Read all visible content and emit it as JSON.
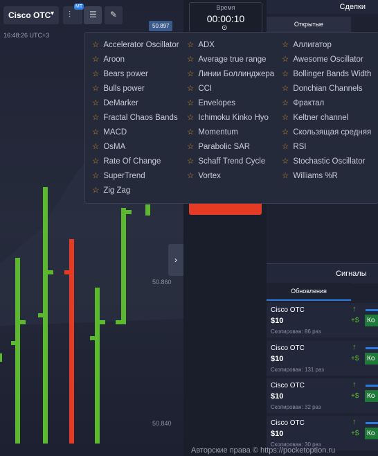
{
  "toolbar": {
    "asset": "Cisco OTC",
    "badge": "MT",
    "time": "16:48:26 UTC+3",
    "price": "50.897"
  },
  "timer": {
    "label": "Время",
    "value": "00:00:10"
  },
  "trades": {
    "title": "Сделки",
    "tab": "Открытые"
  },
  "indicators": {
    "columns": [
      [
        "Accelerator Oscillator",
        "Aroon",
        "Bears power",
        "Bulls power",
        "DeMarker",
        "Fractal Chaos Bands",
        "MACD",
        "OsMA",
        "Rate Of Change",
        "SuperTrend",
        "Zig Zag"
      ],
      [
        "ADX",
        "Average true range",
        "Линии Боллинджера",
        "CCI",
        "Envelopes",
        "Ichimoku Kinko Hyo",
        "Momentum",
        "Parabolic SAR",
        "Schaff Trend Cycle",
        "Vortex"
      ],
      [
        "Аллигатор",
        "Awesome Oscillator",
        "Bollinger Bands Width",
        "Donchian Channels",
        "Фрактал",
        "Keltner channel",
        "Скользящая средняя",
        "RSI",
        "Stochastic Oscillator",
        "Williams %R"
      ]
    ]
  },
  "price_axis": [
    "50.860",
    "50.840"
  ],
  "signals": {
    "title": "Сигналы",
    "tab": "Обновления",
    "cards": [
      {
        "asset": "Cisco OTC",
        "amount": "$10",
        "copied": "Скопирован: 86 раз",
        "profit": "+$",
        "button": "Ко"
      },
      {
        "asset": "Cisco OTC",
        "amount": "$10",
        "copied": "Скопирован: 131 раз",
        "profit": "+$",
        "button": "Ко"
      },
      {
        "asset": "Cisco OTC",
        "amount": "$10",
        "copied": "Скопирован: 32 раз",
        "profit": "+$",
        "button": "Ко"
      },
      {
        "asset": "Cisco OTC",
        "amount": "$10",
        "copied": "Скопирован: 30 раз",
        "profit": "+$",
        "button": "Ко"
      }
    ]
  },
  "footer": "Авторские права © https://pocketoption.ru"
}
